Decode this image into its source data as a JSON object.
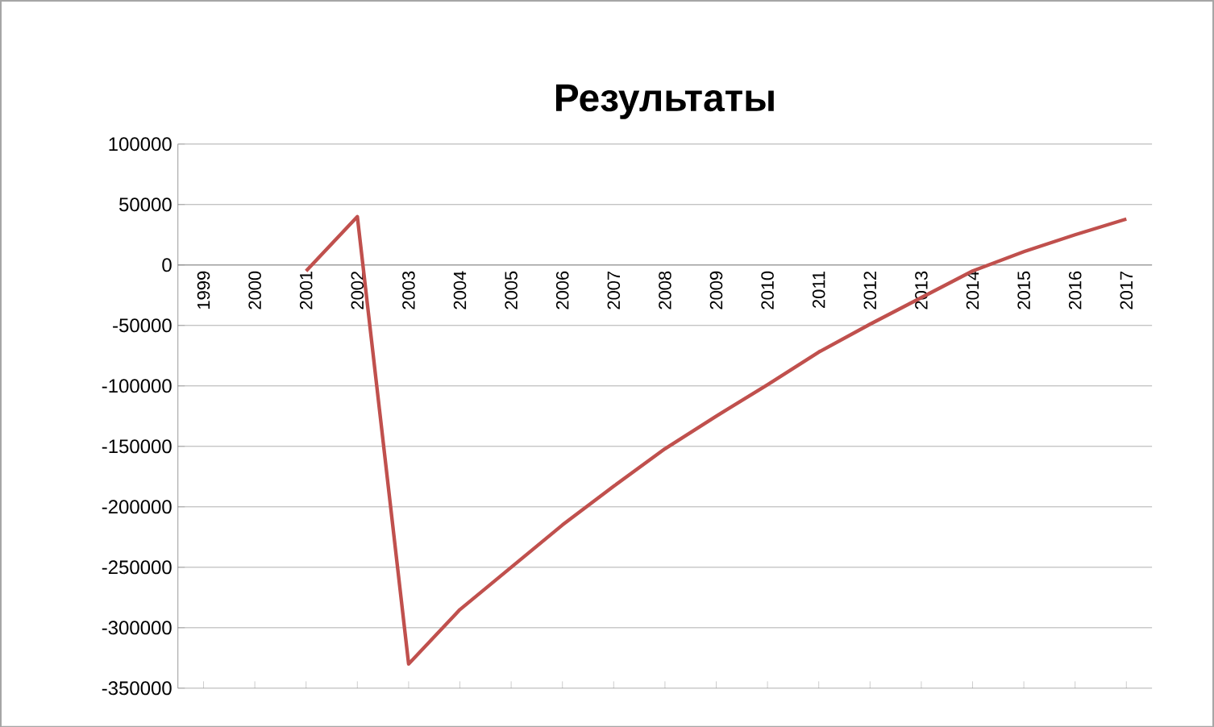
{
  "chart_data": {
    "type": "line",
    "title": "Результаты",
    "categories": [
      "1999",
      "2000",
      "2001",
      "2002",
      "2003",
      "2004",
      "2005",
      "2006",
      "2007",
      "2008",
      "2009",
      "2010",
      "2011",
      "2012",
      "2013",
      "2014",
      "2015",
      "2016",
      "2017"
    ],
    "series": [
      {
        "color": "#c0504d",
        "values": [
          null,
          null,
          -5000,
          40000,
          -330000,
          -285000,
          -250000,
          -215000,
          -183000,
          -152000,
          -125000,
          -99000,
          -72000,
          -49000,
          -27000,
          -5000,
          11000,
          25000,
          38000
        ]
      }
    ],
    "ylim": [
      -350000,
      100000
    ],
    "yticks": [
      -350000,
      -300000,
      -250000,
      -200000,
      -150000,
      -100000,
      -50000,
      0,
      50000,
      100000
    ],
    "grid": "y",
    "marker": "none",
    "line_style": "solid"
  }
}
